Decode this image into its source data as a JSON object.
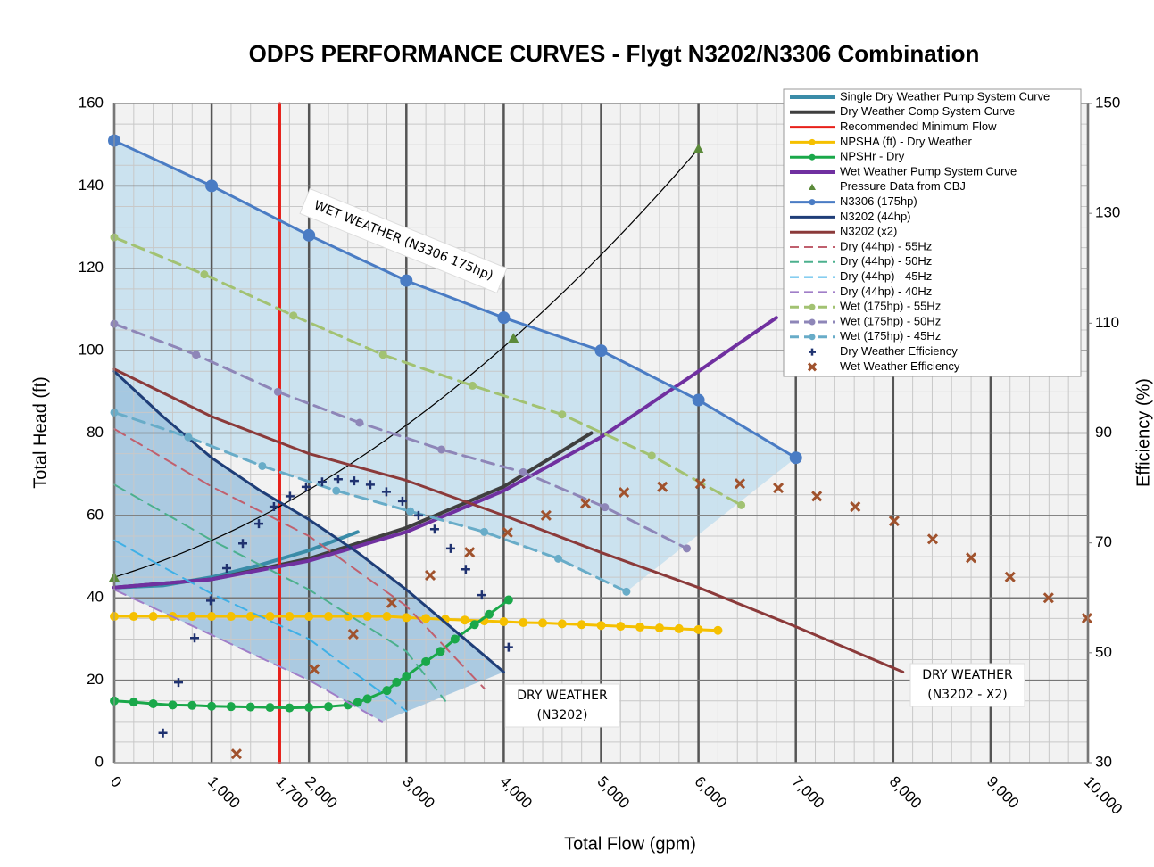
{
  "chart_data": {
    "type": "line",
    "title": "ODPS PERFORMANCE CURVES - Flygt N3202/N3306 Combination",
    "x_label": "Total Flow (gpm)",
    "y_label": "Total Head (ft)",
    "y2_label": "Efficiency (%)",
    "xlim": [
      0,
      10000
    ],
    "ylim": [
      0,
      160
    ],
    "y2lim": [
      30,
      150
    ],
    "xticks": [
      0,
      {
        "value": 1000,
        "label": "1,000"
      },
      {
        "value": 1700,
        "label": "1,700"
      },
      {
        "value": 2000,
        "label": "2,000"
      },
      {
        "value": 3000,
        "label": "3,000"
      },
      {
        "value": 4000,
        "label": "4,000"
      },
      {
        "value": 5000,
        "label": "5,000"
      },
      {
        "value": 6000,
        "label": "6,000"
      },
      {
        "value": 7000,
        "label": "7,000"
      },
      {
        "value": 8000,
        "label": "8,000"
      },
      {
        "value": 9000,
        "label": "9,000"
      },
      {
        "value": 10000,
        "label": "10,000"
      }
    ],
    "yticks": [
      0,
      20,
      40,
      60,
      80,
      100,
      120,
      140,
      160
    ],
    "y2ticks": [
      30,
      50,
      70,
      90,
      110,
      130,
      150
    ],
    "grid": true,
    "minor_grid": {
      "x": 200,
      "y": 5
    },
    "legend": "upper right",
    "annotations": [
      {
        "lines": [
          "WET WEATHER (N3306 175hp)"
        ]
      },
      {
        "lines": [
          "DRY WEATHER",
          "(N3202)"
        ]
      },
      {
        "lines": [
          "DRY WEATHER",
          "(N3202 - X2)"
        ]
      }
    ],
    "areas": [
      {
        "series": [
          7,
          16
        ],
        "color": "#c4dfee"
      },
      {
        "series": [
          8,
          13
        ],
        "color": "#9fc3de"
      }
    ],
    "series": [
      {
        "name": "Single Dry Weather Pump System Curve",
        "color": "#3a8ca8",
        "width": 4,
        "x": [
          0,
          500,
          1000,
          1500,
          2000,
          2500
        ],
        "values": [
          42.5,
          43,
          45,
          48,
          51.5,
          56
        ]
      },
      {
        "name": "Dry Weather Comp System Curve",
        "color": "#3f3f3f",
        "width": 4,
        "x": [
          0,
          1000,
          2000,
          3000,
          4000,
          4900
        ],
        "values": [
          42.5,
          44.5,
          49.5,
          57,
          67,
          80
        ]
      },
      {
        "name": "Recommended Minimum Flow",
        "color": "#e8201a",
        "width": 3,
        "x": [
          1700,
          1700
        ],
        "values": [
          0,
          160
        ]
      },
      {
        "name": "NPSHA (ft) - Dry Weather",
        "color": "#f5c000",
        "width": 3,
        "marker": "circle",
        "msize": 5,
        "x": [
          0,
          200,
          400,
          600,
          800,
          1000,
          1200,
          1400,
          1600,
          1800,
          2000,
          2200,
          2400,
          2600,
          2800,
          3000,
          3200,
          3400,
          3600,
          3800,
          4000,
          4200,
          4400,
          4600,
          4800,
          5000,
          5200,
          5400,
          5600,
          5800,
          6000,
          6200
        ],
        "values": [
          35.5,
          35.5,
          35.5,
          35.5,
          35.5,
          35.5,
          35.5,
          35.5,
          35.5,
          35.5,
          35.5,
          35.5,
          35.5,
          35.5,
          35.5,
          35.2,
          35,
          34.8,
          34.6,
          34.4,
          34.2,
          34,
          33.9,
          33.7,
          33.5,
          33.3,
          33.1,
          32.9,
          32.7,
          32.5,
          32.3,
          32.1
        ]
      },
      {
        "name": "NPSHr - Dry",
        "color": "#1aa84a",
        "width": 3,
        "marker": "circle",
        "msize": 5,
        "x": [
          0,
          200,
          400,
          600,
          800,
          1000,
          1200,
          1400,
          1600,
          1800,
          2000,
          2200,
          2400,
          2500,
          2600,
          2800,
          2900,
          3000,
          3200,
          3350,
          3500,
          3700,
          3850,
          4050
        ],
        "values": [
          15,
          14.7,
          14.3,
          14,
          13.9,
          13.7,
          13.6,
          13.5,
          13.4,
          13.3,
          13.4,
          13.6,
          14,
          14.6,
          15.5,
          17.5,
          19.5,
          21,
          24.5,
          27,
          30,
          33.5,
          36,
          39.5
        ]
      },
      {
        "name": "Wet Weather Pump System Curve",
        "color": "#7030a0",
        "width": 4,
        "x": [
          0,
          1000,
          2000,
          3000,
          4000,
          5000,
          6000,
          6800
        ],
        "values": [
          42.5,
          44.5,
          49,
          56,
          66,
          79,
          95,
          108
        ]
      },
      {
        "name": "Pressure Data from CBJ",
        "color": "#5b8a3a",
        "marker": "triangle",
        "msize": 6,
        "nolines": true,
        "trendline": true,
        "x": [
          0,
          4100,
          6000
        ],
        "values": [
          45,
          103,
          149
        ]
      },
      {
        "name": "N3306 (175hp)",
        "color": "#4a7cc4",
        "width": 3,
        "marker": "circle",
        "msize": 7,
        "x": [
          0,
          1000,
          2000,
          3000,
          4000,
          5000,
          6000,
          7000
        ],
        "values": [
          151,
          140,
          128,
          117,
          108,
          100,
          88,
          74
        ]
      },
      {
        "name": "N3202 (44hp)",
        "color": "#1f3e78",
        "width": 3,
        "x": [
          0,
          500,
          1000,
          1500,
          2000,
          2500,
          3000,
          3500,
          4000
        ],
        "values": [
          95,
          84,
          74,
          66,
          59,
          51,
          42,
          32,
          22
        ]
      },
      {
        "name": "N3202 (x2)",
        "color": "#8b3a3a",
        "width": 3,
        "x": [
          0,
          1000,
          2000,
          3000,
          4000,
          5000,
          6000,
          7000,
          8100
        ],
        "values": [
          95.5,
          84,
          75,
          68.5,
          60,
          51,
          42.5,
          33,
          22
        ]
      },
      {
        "name": "Dry (44hp) - 55Hz",
        "color": "#c0606e",
        "width": 2,
        "dash": true,
        "x": [
          0,
          1000,
          2000,
          3000,
          3800
        ],
        "values": [
          81,
          67,
          55,
          38,
          18
        ]
      },
      {
        "name": "Dry (44hp) - 50Hz",
        "color": "#4cb08e",
        "width": 2,
        "dash": true,
        "x": [
          0,
          1000,
          2000,
          3000,
          3400
        ],
        "values": [
          67.5,
          54,
          42,
          27,
          15
        ]
      },
      {
        "name": "Dry (44hp) - 45Hz",
        "color": "#3fb0e6",
        "width": 2,
        "dash": true,
        "x": [
          0,
          1000,
          2000,
          3000
        ],
        "values": [
          54,
          41,
          30,
          12.5
        ]
      },
      {
        "name": "Dry (44hp) - 40Hz",
        "color": "#a07ec8",
        "width": 2,
        "dash": true,
        "x": [
          0,
          1000,
          2000,
          2750
        ],
        "values": [
          42,
          31,
          20,
          10
        ]
      },
      {
        "name": "Wet (175hp) - 55Hz",
        "color": "#a2c272",
        "width": 3,
        "dash": true,
        "marker": "circle",
        "msize": 4.5,
        "x": [
          0,
          925,
          1840,
          2760,
          3680,
          4600,
          5520,
          6440
        ],
        "values": [
          127.5,
          118.5,
          108.5,
          99,
          91.5,
          84.5,
          74.5,
          62.5
        ]
      },
      {
        "name": "Wet (175hp) - 50Hz",
        "color": "#8e86b8",
        "width": 3,
        "dash": true,
        "marker": "circle",
        "msize": 4.5,
        "x": [
          0,
          840,
          1680,
          2520,
          3360,
          4200,
          5040,
          5880
        ],
        "values": [
          106.5,
          99,
          90,
          82.5,
          76,
          70.5,
          62,
          52
        ]
      },
      {
        "name": "Wet (175hp) - 45Hz",
        "color": "#68acc8",
        "width": 3,
        "dash": true,
        "marker": "circle",
        "msize": 4.5,
        "x": [
          0,
          760,
          1520,
          2280,
          3040,
          3800,
          4560,
          5260
        ],
        "values": [
          85,
          79,
          72,
          66,
          61,
          56,
          49.5,
          41.5
        ]
      },
      {
        "name": "Dry Weather Efficiency",
        "color": "#1f3270",
        "marker": "plus",
        "msize": 5,
        "nolines": true,
        "axis": "y2",
        "x": [
          500,
          660,
          825,
          990,
          1155,
          1320,
          1485,
          1640,
          1805,
          1970,
          2135,
          2300,
          2465,
          2630,
          2795,
          2960,
          3125,
          3290,
          3455,
          3610,
          3775,
          4050
        ],
        "values": [
          35.4,
          44.6,
          52.7,
          59.5,
          65.4,
          69.9,
          73.5,
          76.6,
          78.5,
          80.2,
          81.1,
          81.6,
          81.3,
          80.6,
          79.3,
          77.6,
          75,
          72.5,
          69,
          65.2,
          60.5,
          51
        ]
      },
      {
        "name": "Wet Weather Efficiency",
        "color": "#a0522d",
        "marker": "x",
        "msize": 5,
        "nolines": true,
        "axis": "y2",
        "x": [
          1255,
          2055,
          2455,
          2850,
          3245,
          3650,
          4040,
          4435,
          4840,
          5235,
          5630,
          6020,
          6425,
          6820,
          7215,
          7610,
          8010,
          8405,
          8800,
          9200,
          9595,
          9990
        ],
        "values": [
          31.6,
          47,
          53.4,
          59.1,
          64.1,
          68.3,
          71.9,
          75,
          77.2,
          79.2,
          80.2,
          80.8,
          80.8,
          80,
          78.5,
          76.6,
          74,
          70.7,
          67.3,
          63.8,
          60,
          56.3
        ]
      }
    ]
  }
}
